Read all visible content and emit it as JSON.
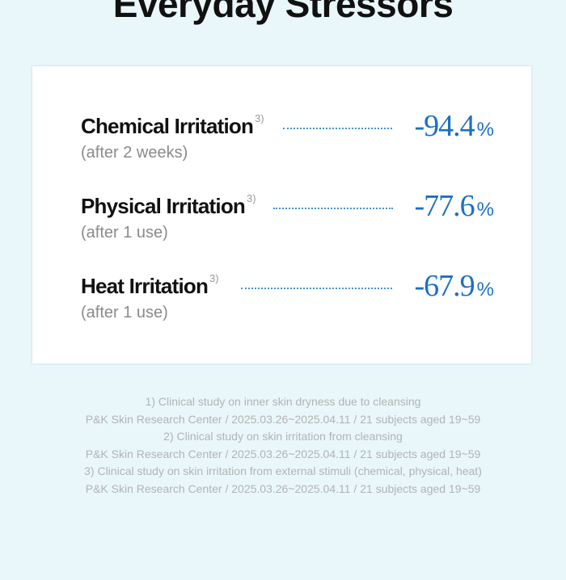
{
  "headline": "Everyday Stressors",
  "metrics": [
    {
      "label": "Chemical Irritation",
      "ref": "3)",
      "sub": "(after 2 weeks)",
      "value": "-94.4",
      "unit": "%"
    },
    {
      "label": "Physical Irritation",
      "ref": "3)",
      "sub": "(after 1 use)",
      "value": "-77.6",
      "unit": "%"
    },
    {
      "label": "Heat Irritation",
      "ref": "3)",
      "sub": "(after 1 use)",
      "value": "-67.9",
      "unit": "%"
    }
  ],
  "footnotes": [
    "1)  Clinical study on inner skin dryness due to cleansing",
    "P&K Skin Research Center / 2025.03.26~2025.04.11 / 21 subjects aged 19~59",
    "2) Clinical study on skin irritation from cleansing",
    "P&K Skin Research Center / 2025.03.26~2025.04.11 / 21 subjects aged 19~59",
    "3) Clinical study on skin irritation from external stimuli (chemical, physical, heat)",
    "P&K Skin Research Center / 2025.03.26~2025.04.11 / 21 subjects aged 19~59"
  ],
  "colors": {
    "accent": "#1d6fc4",
    "background": "#e9f7fb",
    "card": "#ffffff"
  }
}
